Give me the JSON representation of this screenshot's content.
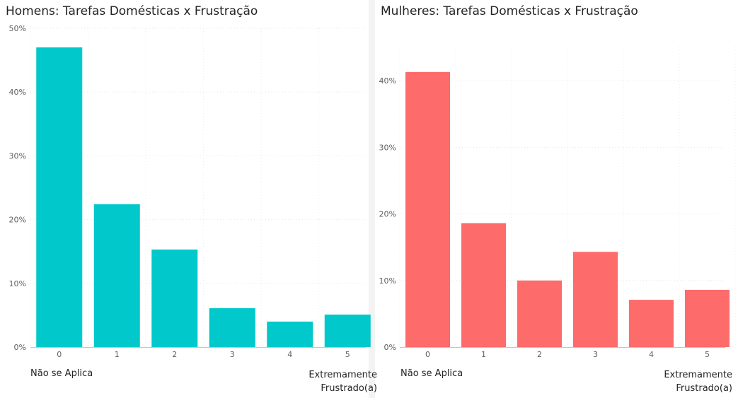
{
  "chart_data": [
    {
      "type": "bar",
      "title": "Homens: Tarefas Domésticas x Frustração",
      "categories": [
        "0",
        "1",
        "2",
        "3",
        "4",
        "5"
      ],
      "values": [
        0.47,
        0.224,
        0.153,
        0.061,
        0.04,
        0.051
      ],
      "ylim": [
        0,
        0.5
      ],
      "yticks": [
        {
          "value": 0,
          "label": "0%"
        },
        {
          "value": 0.1,
          "label": "10%"
        },
        {
          "value": 0.2,
          "label": "20%"
        },
        {
          "value": 0.3,
          "label": "30%"
        },
        {
          "value": 0.4,
          "label": "40%"
        },
        {
          "value": 0.5,
          "label": "50%"
        }
      ],
      "color": "#01C8CA",
      "grid": true,
      "annotations": {
        "left": "Não se Aplica",
        "right": [
          "Extremamente",
          "Frustrado(a)"
        ]
      }
    },
    {
      "type": "bar",
      "title": "Mulheres: Tarefas Domésticas x Frustração",
      "categories": [
        "0",
        "1",
        "2",
        "3",
        "4",
        "5"
      ],
      "values": [
        0.413,
        0.186,
        0.1,
        0.143,
        0.071,
        0.086
      ],
      "ylim": [
        0,
        0.45
      ],
      "yticks": [
        {
          "value": 0,
          "label": "0%"
        },
        {
          "value": 0.1,
          "label": "10%"
        },
        {
          "value": 0.2,
          "label": "20%"
        },
        {
          "value": 0.3,
          "label": "30%"
        },
        {
          "value": 0.4,
          "label": "40%"
        }
      ],
      "color": "#FD6B6B",
      "grid": true,
      "annotations": {
        "left": "Não se Aplica",
        "right": [
          "Extremamente",
          "Frustrado(a)"
        ]
      }
    }
  ]
}
